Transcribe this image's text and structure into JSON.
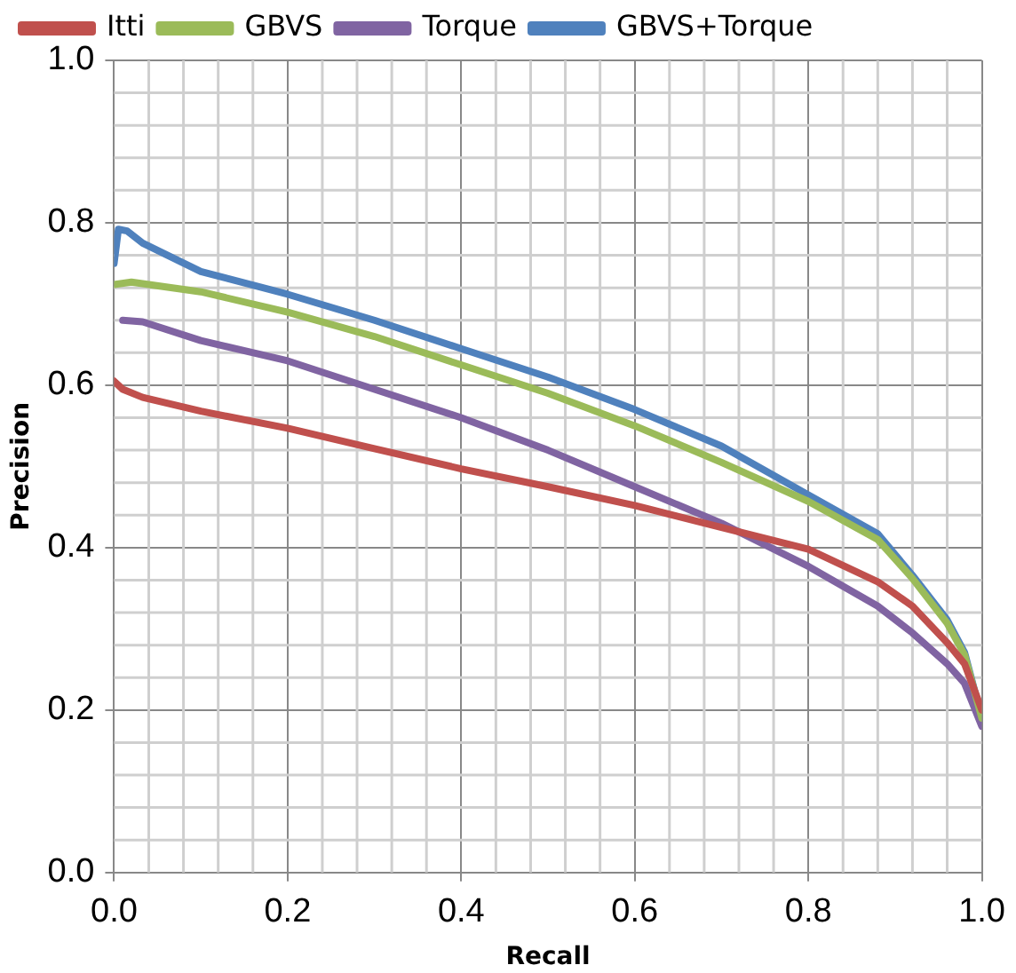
{
  "chart_data": {
    "type": "line",
    "xlabel": "Recall",
    "ylabel": "Precision",
    "xlim": [
      0,
      1
    ],
    "ylim": [
      0,
      1
    ],
    "xticks": [
      {
        "value": 0,
        "label": "0.0"
      },
      0.2,
      0.4,
      0.6,
      0.8,
      {
        "value": 1,
        "label": "1.0"
      }
    ],
    "yticks": [
      {
        "value": 0,
        "label": "0.0"
      },
      0.2,
      0.4,
      0.6,
      0.8,
      {
        "value": 1,
        "label": "1.0"
      }
    ],
    "grid": true,
    "legend": "top",
    "marker": "none",
    "line_style": "solid",
    "series": [
      {
        "name": "Itti",
        "color": "#c0504d",
        "x": [
          0,
          0.01,
          0.033,
          0.1,
          0.2,
          0.3,
          0.4,
          0.5,
          0.6,
          0.7,
          0.8,
          0.88,
          0.92,
          0.96,
          0.98,
          1
        ],
        "values": [
          0.605,
          0.595,
          0.585,
          0.568,
          0.547,
          0.522,
          0.497,
          0.475,
          0.452,
          0.425,
          0.398,
          0.358,
          0.328,
          0.283,
          0.257,
          0.2
        ]
      },
      {
        "name": "GBVS",
        "color": "#9bbb59",
        "x": [
          0,
          0.02,
          0.1,
          0.2,
          0.3,
          0.4,
          0.5,
          0.6,
          0.7,
          0.8,
          0.88,
          0.92,
          0.96,
          0.98,
          1
        ],
        "values": [
          0.724,
          0.727,
          0.715,
          0.69,
          0.66,
          0.625,
          0.59,
          0.55,
          0.505,
          0.457,
          0.41,
          0.362,
          0.307,
          0.268,
          0.19
        ]
      },
      {
        "name": "Torque",
        "color": "#8064a2",
        "x": [
          0.01,
          0.033,
          0.1,
          0.2,
          0.3,
          0.4,
          0.5,
          0.6,
          0.7,
          0.8,
          0.88,
          0.92,
          0.96,
          0.98,
          1
        ],
        "values": [
          0.68,
          0.678,
          0.655,
          0.63,
          0.595,
          0.56,
          0.52,
          0.475,
          0.43,
          0.377,
          0.328,
          0.295,
          0.257,
          0.233,
          0.18
        ]
      },
      {
        "name": "GBVS+Torque",
        "color": "#4f81bd",
        "x": [
          0,
          0.005,
          0.015,
          0.033,
          0.1,
          0.2,
          0.3,
          0.4,
          0.5,
          0.6,
          0.7,
          0.8,
          0.88,
          0.92,
          0.96,
          0.98,
          1
        ],
        "values": [
          0.75,
          0.792,
          0.79,
          0.775,
          0.74,
          0.712,
          0.68,
          0.645,
          0.61,
          0.57,
          0.525,
          0.465,
          0.417,
          0.366,
          0.311,
          0.271,
          0.19
        ]
      }
    ]
  }
}
